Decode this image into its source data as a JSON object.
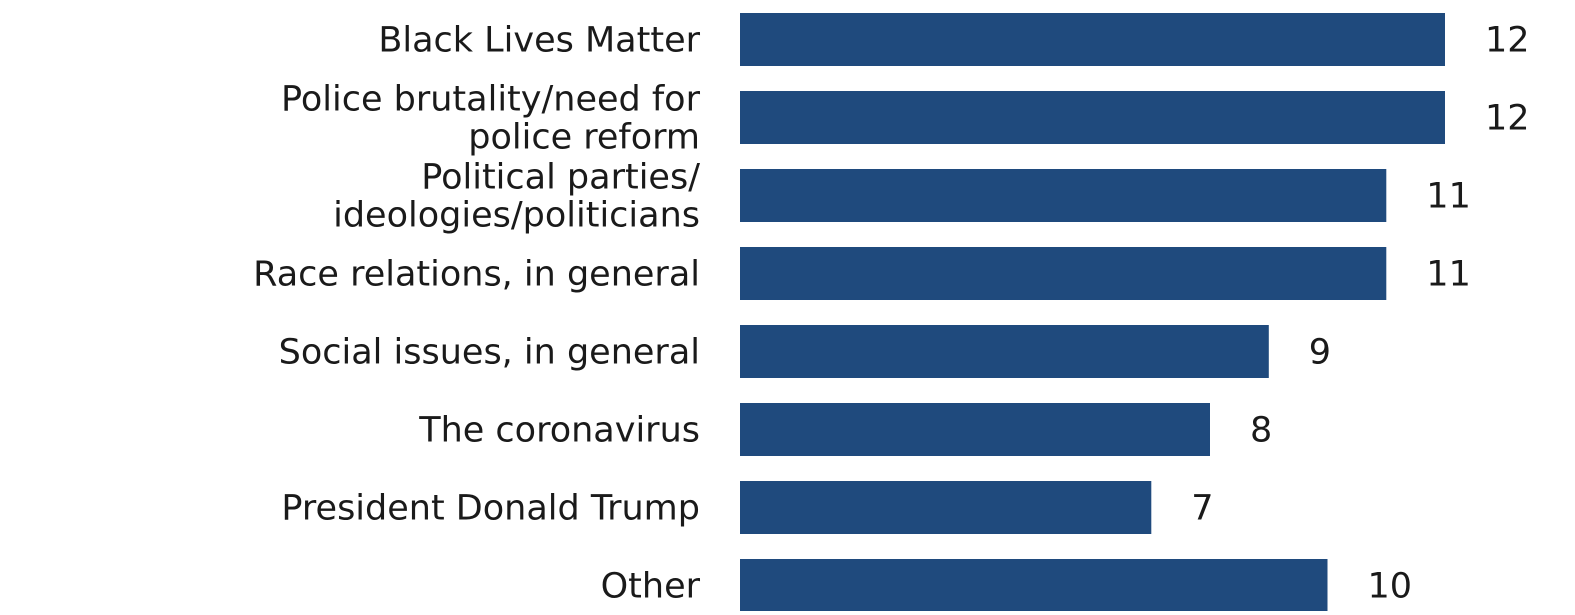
{
  "chart_data": {
    "type": "bar",
    "orientation": "horizontal",
    "categories": [
      [
        "Black Lives Matter"
      ],
      [
        "Police brutality/need for",
        "police reform"
      ],
      [
        "Political parties/",
        "ideologies/politicians"
      ],
      [
        "Race relations, in general"
      ],
      [
        "Social issues, in general"
      ],
      [
        "The coronavirus"
      ],
      [
        "President Donald Trump"
      ],
      [
        "Other"
      ]
    ],
    "values": [
      12,
      12,
      11,
      11,
      9,
      8,
      7,
      10
    ],
    "value_labels": [
      "12",
      "12",
      "11",
      "11",
      "9",
      "8",
      "7",
      "10"
    ],
    "title": "",
    "xlabel": "",
    "ylabel": "",
    "xlim": [
      0,
      12
    ],
    "grid": false,
    "legend": "none",
    "bar_color": "#1f4a7d",
    "text_color": "#1a1a1a"
  }
}
